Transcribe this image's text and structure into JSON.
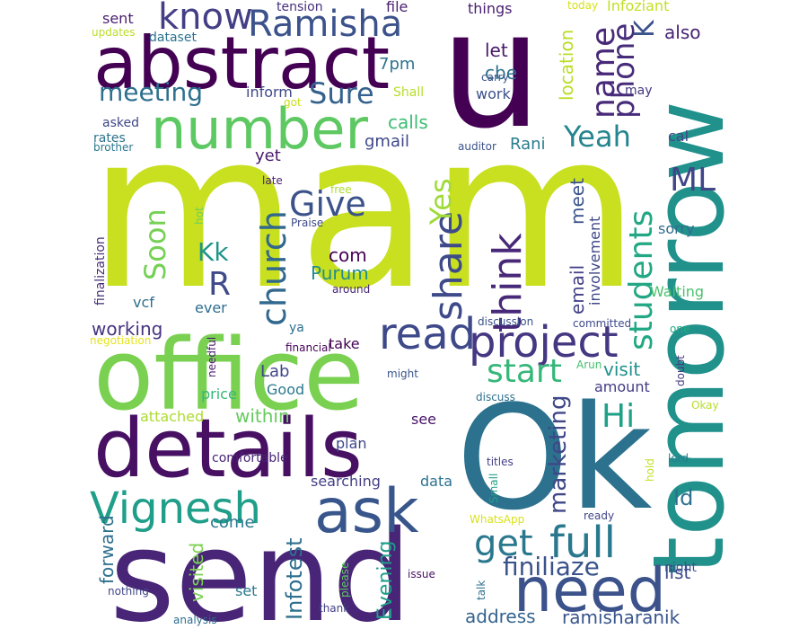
{
  "words": [
    {
      "text": "mam",
      "color": "#c8e020"
    },
    {
      "text": "send",
      "color": "#482576"
    },
    {
      "text": "Ok",
      "color": "#2c728e"
    },
    {
      "text": "office",
      "color": "#7ad151"
    },
    {
      "text": "u",
      "color": "#440154"
    },
    {
      "text": "tomorrow",
      "color": "#21918c"
    },
    {
      "text": "details",
      "color": "#471063"
    },
    {
      "text": "abstract",
      "color": "#440154"
    },
    {
      "text": "need",
      "color": "#3b528b"
    },
    {
      "text": "number",
      "color": "#5ec962"
    },
    {
      "text": "Vignesh",
      "color": "#1f9e89"
    },
    {
      "text": "ask",
      "color": "#39568c"
    },
    {
      "text": "project",
      "color": "#453781"
    },
    {
      "text": "full",
      "color": "#2a788e"
    },
    {
      "text": "read",
      "color": "#3e4989"
    },
    {
      "text": "Ramisha",
      "color": "#3b528b"
    },
    {
      "text": "know",
      "color": "#433e85"
    },
    {
      "text": "think",
      "color": "#482878"
    },
    {
      "text": "share",
      "color": "#3e4a89"
    },
    {
      "text": "start",
      "color": "#35b779"
    },
    {
      "text": "get",
      "color": "#2a788e"
    },
    {
      "text": "Give",
      "color": "#3b528b"
    },
    {
      "text": "church",
      "color": "#31688e"
    },
    {
      "text": "name",
      "color": "#482878"
    },
    {
      "text": "students",
      "color": "#22a884"
    },
    {
      "text": "Yeah",
      "color": "#25858e"
    },
    {
      "text": "phone",
      "color": "#472c7a"
    },
    {
      "text": "Hi",
      "color": "#1fa187"
    },
    {
      "text": "Sure",
      "color": "#34618d"
    },
    {
      "text": "ML",
      "color": "#404688"
    },
    {
      "text": "Soon",
      "color": "#75d054"
    },
    {
      "text": "Yes",
      "color": "#a0da39"
    },
    {
      "text": "finiliaze",
      "color": "#3a538b"
    },
    {
      "text": "meeting",
      "color": "#2d708e"
    },
    {
      "text": "R",
      "color": "#3e4a89"
    },
    {
      "text": "K",
      "color": "#3b528b"
    },
    {
      "text": "Kk",
      "color": "#1f958b"
    },
    {
      "text": "marketing",
      "color": "#3f4788"
    },
    {
      "text": "Id",
      "color": "#2c728e"
    },
    {
      "text": "Infotest",
      "color": "#2e6f8e"
    },
    {
      "text": "Evening",
      "color": "#1e9c89"
    },
    {
      "text": "working",
      "color": "#463480"
    },
    {
      "text": "address",
      "color": "#33638d"
    },
    {
      "text": "ramisharanik",
      "color": "#39558c"
    },
    {
      "text": "calls",
      "color": "#3dbc74"
    },
    {
      "text": "visit",
      "color": "#20928c"
    },
    {
      "text": "com",
      "color": "#440154"
    },
    {
      "text": "Purum",
      "color": "#228c8d"
    },
    {
      "text": "email",
      "color": "#424086"
    },
    {
      "text": "meet",
      "color": "#3a538b"
    },
    {
      "text": "location",
      "color": "#bade28"
    },
    {
      "text": "let",
      "color": "#481769"
    },
    {
      "text": "cbe",
      "color": "#2d718e"
    },
    {
      "text": "also",
      "color": "#482173"
    },
    {
      "text": "inform",
      "color": "#3e4989"
    },
    {
      "text": "7pm",
      "color": "#2c738e"
    },
    {
      "text": "Rani",
      "color": "#287d8e"
    },
    {
      "text": "gmail",
      "color": "#3f4889"
    },
    {
      "text": "yet",
      "color": "#481b6d"
    },
    {
      "text": "work",
      "color": "#3b528b"
    },
    {
      "text": "forward",
      "color": "#2d708e"
    },
    {
      "text": "visited",
      "color": "#7ad151"
    },
    {
      "text": "within",
      "color": "#65cb5e"
    },
    {
      "text": "come",
      "color": "#2a788e"
    },
    {
      "text": "plan",
      "color": "#3e4989"
    },
    {
      "text": "list",
      "color": "#3e4a89"
    },
    {
      "text": "searching",
      "color": "#433e85"
    },
    {
      "text": "Lab",
      "color": "#404588"
    },
    {
      "text": "amount",
      "color": "#443b84"
    },
    {
      "text": "Good",
      "color": "#2a788e"
    },
    {
      "text": "involvement",
      "color": "#3f4889"
    },
    {
      "text": "finalization",
      "color": "#472c7a"
    },
    {
      "text": "vcf",
      "color": "#2e6f8e"
    },
    {
      "text": "ever",
      "color": "#2e6e8e"
    },
    {
      "text": "take",
      "color": "#440154"
    },
    {
      "text": "attached",
      "color": "#addc30"
    },
    {
      "text": "comfortable",
      "color": "#482475"
    },
    {
      "text": "price",
      "color": "#35b779"
    },
    {
      "text": "data",
      "color": "#2c728e"
    },
    {
      "text": "see",
      "color": "#481467"
    },
    {
      "text": "Infoziant",
      "color": "#c2df23"
    },
    {
      "text": "sent",
      "color": "#481f70"
    },
    {
      "text": "file",
      "color": "#481f70"
    },
    {
      "text": "things",
      "color": "#481d6f"
    },
    {
      "text": "tension",
      "color": "#462f7e"
    },
    {
      "text": "dataset",
      "color": "#2c728e"
    },
    {
      "text": "updates",
      "color": "#bade28"
    },
    {
      "text": "Shall",
      "color": "#b5de2b"
    },
    {
      "text": "got",
      "color": "#c8e020"
    },
    {
      "text": "carry",
      "color": "#3b528b"
    },
    {
      "text": "today",
      "color": "#d5e21a"
    },
    {
      "text": "may",
      "color": "#453781"
    },
    {
      "text": "cal",
      "color": "#3f4788"
    },
    {
      "text": "asked",
      "color": "#3f4788"
    },
    {
      "text": "rates",
      "color": "#2c728e"
    },
    {
      "text": "brother",
      "color": "#2a788e"
    },
    {
      "text": "auditor",
      "color": "#3b528b"
    },
    {
      "text": "late",
      "color": "#481f70"
    },
    {
      "text": "free",
      "color": "#addc30"
    },
    {
      "text": "Praise",
      "color": "#3e4989"
    },
    {
      "text": "hot",
      "color": "#6ece58"
    },
    {
      "text": "sorry",
      "color": "#2e6e8e"
    },
    {
      "text": "Waiting",
      "color": "#4ac16d"
    },
    {
      "text": "around",
      "color": "#482475"
    },
    {
      "text": "discussion",
      "color": "#3b528b"
    },
    {
      "text": "committed",
      "color": "#3e4a89"
    },
    {
      "text": "one",
      "color": "#25ab82"
    },
    {
      "text": "ya",
      "color": "#2d708e"
    },
    {
      "text": "negotiation",
      "color": "#e5e419"
    },
    {
      "text": "financial",
      "color": "#440154"
    },
    {
      "text": "needful",
      "color": "#481b6d"
    },
    {
      "text": "might",
      "color": "#39568c"
    },
    {
      "text": "Arun",
      "color": "#46c06f"
    },
    {
      "text": "discuss",
      "color": "#2d708e"
    },
    {
      "text": "doubt",
      "color": "#453781"
    },
    {
      "text": "Okay",
      "color": "#b5de2b"
    },
    {
      "text": "lord",
      "color": "#287d8e"
    },
    {
      "text": "hold",
      "color": "#c2df23"
    },
    {
      "text": "titles",
      "color": "#433e85"
    },
    {
      "text": "Small",
      "color": "#1fa187"
    },
    {
      "text": "WhatsApp",
      "color": "#d8e219"
    },
    {
      "text": "ready",
      "color": "#404588"
    },
    {
      "text": "night",
      "color": "#3b528b"
    },
    {
      "text": "set",
      "color": "#2a788e"
    },
    {
      "text": "issue",
      "color": "#471164"
    },
    {
      "text": "talk",
      "color": "#2c728e"
    },
    {
      "text": "please",
      "color": "#5ec962"
    },
    {
      "text": "nothing",
      "color": "#404688"
    },
    {
      "text": "thank",
      "color": "#433e85"
    },
    {
      "text": "analysis",
      "color": "#2e6e8e"
    }
  ]
}
